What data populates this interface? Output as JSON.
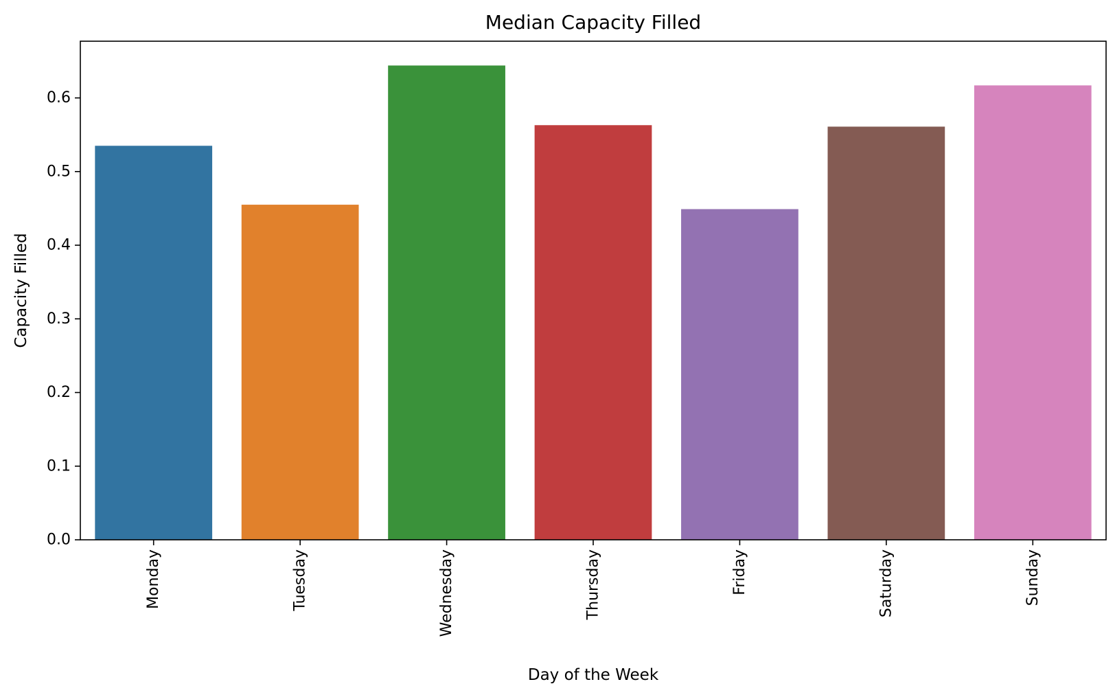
{
  "chart_data": {
    "type": "bar",
    "title": "Median Capacity Filled",
    "xlabel": "Day of the Week",
    "ylabel": "Capacity Filled",
    "categories": [
      "Monday",
      "Tuesday",
      "Wednesday",
      "Thursday",
      "Friday",
      "Saturday",
      "Sunday"
    ],
    "values": [
      0.535,
      0.455,
      0.644,
      0.563,
      0.449,
      0.561,
      0.617
    ],
    "colors": [
      "#3274a1",
      "#e1812c",
      "#3a923a",
      "#c03d3e",
      "#9372b2",
      "#845b53",
      "#d684bd"
    ],
    "ylim": [
      0,
      0.677
    ],
    "yticks": [
      0.0,
      0.1,
      0.2,
      0.3,
      0.4,
      0.5,
      0.6
    ],
    "ytick_labels": [
      "0.0",
      "0.1",
      "0.2",
      "0.3",
      "0.4",
      "0.5",
      "0.6"
    ],
    "grid": false,
    "legend": "none"
  }
}
